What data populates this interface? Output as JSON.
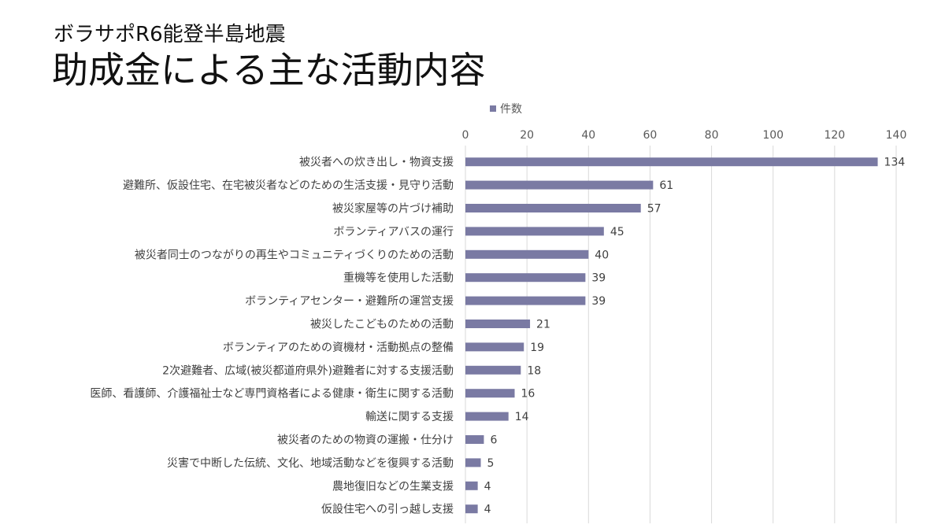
{
  "slide": {
    "subtitle": "ボラサポR6能登半島地震",
    "title": "助成金による主な活動内容"
  },
  "chart_data": {
    "type": "bar",
    "orientation": "horizontal",
    "categories": [
      "被災者への炊き出し・物資支援",
      "避難所、仮設住宅、在宅被災者などのための生活支援・見守り活動",
      "被災家屋等の片づけ補助",
      "ボランティアバスの運行",
      "被災者同士のつながりの再生やコミュニティづくりのための活動",
      "重機等を使用した活動",
      "ボランティアセンター・避難所の運営支援",
      "被災したこどものための活動",
      "ボランティアのための資機材・活動拠点の整備",
      "2次避難者、広域(被災都道府県外)避難者に対する支援活動",
      "医師、看護師、介護福祉士など専門資格者による健康・衛生に関する活動",
      "輸送に関する支援",
      "被災者のための物資の運搬・仕分け",
      "災害で中断した伝統、文化、地域活動などを復興する活動",
      "農地復旧などの生業支援",
      "仮設住宅への引っ越し支援"
    ],
    "series": [
      {
        "name": "件数",
        "values": [
          134,
          61,
          57,
          45,
          40,
          39,
          39,
          21,
          19,
          18,
          16,
          14,
          6,
          5,
          4,
          4
        ]
      }
    ],
    "xlim": [
      0,
      140
    ],
    "xticks": [
      0,
      20,
      40,
      60,
      80,
      100,
      120,
      140
    ],
    "x_axis_position": "top",
    "grid": true,
    "data_labels": true,
    "legend": {
      "position": "top"
    },
    "colors": {
      "bar": "#7a7aa3",
      "grid": "#d9d9d9"
    }
  }
}
